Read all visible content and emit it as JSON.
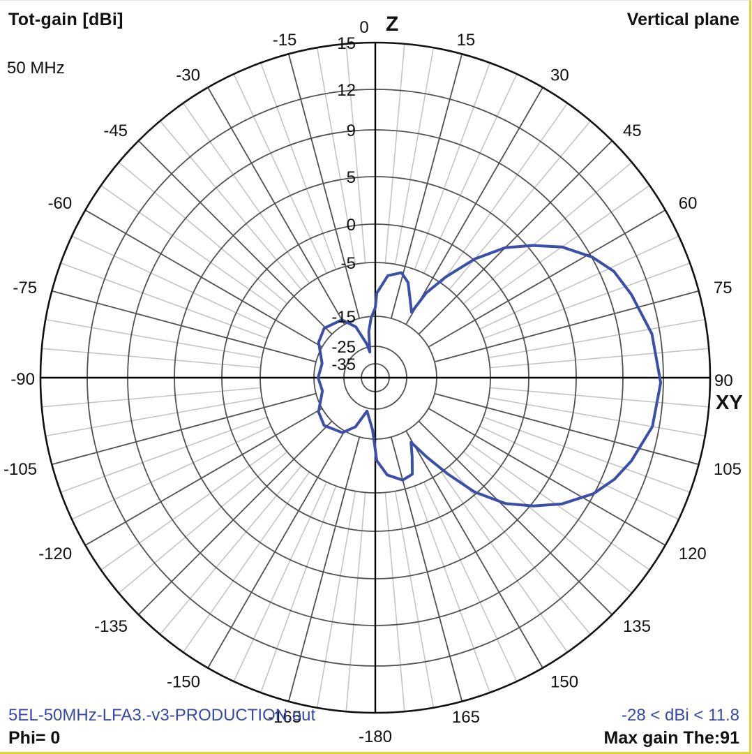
{
  "header": {
    "quantity": "Tot-gain [dBi]",
    "plane": "Vertical plane",
    "frequency": "50 MHz"
  },
  "footer": {
    "filename": "5EL-50MHz-LFA3.-v3-PRODUCTION.out",
    "range": "-28 < dBi < 11.8",
    "phi": "Phi= 0",
    "max_gain": "Max gain The:91"
  },
  "axes": {
    "top_axis_label": "Z",
    "right_axis_label": "XY"
  },
  "colors": {
    "trace": "#3a4fa8",
    "axis": "#000000",
    "major_grid": "#505050",
    "minor_grid": "#c4c4c4",
    "frame_accent": "#e4d232",
    "footer_text": "#3648a8"
  },
  "chart_data": {
    "type": "polar-line",
    "title": "Tot-gain [dBi] - Vertical plane",
    "subtitle": "50 MHz",
    "angle_unit": "deg",
    "angle_zero": "top (Z)",
    "angle_direction": "clockwise",
    "angle_ticks": [
      0,
      15,
      30,
      45,
      60,
      75,
      90,
      105,
      120,
      135,
      150,
      165,
      -180,
      -165,
      -150,
      -135,
      -120,
      -105,
      -90,
      -75,
      -60,
      -45,
      -30,
      -15
    ],
    "radial_ticks_dbi": [
      -35,
      -25,
      -15,
      -5,
      0,
      5,
      9,
      12,
      15
    ],
    "radial_tick_radius_px": [
      20,
      45,
      88,
      165,
      220,
      288,
      355,
      413,
      480
    ],
    "radial_range_dbi": [
      -35,
      15
    ],
    "grid": true,
    "series": [
      {
        "name": "Tot-gain Phi=0",
        "points": [
          {
            "theta": 0,
            "gain": -13.4
          },
          {
            "theta": 1,
            "gain": -10.7
          },
          {
            "theta": 7,
            "gain": -7.3
          },
          {
            "theta": 14,
            "gain": -6.3
          },
          {
            "theta": 19,
            "gain": -7.7
          },
          {
            "theta": 24,
            "gain": -10.5
          },
          {
            "theta": 29,
            "gain": -12.5
          },
          {
            "theta": 31,
            "gain": -8.0
          },
          {
            "theta": 35,
            "gain": -4.0
          },
          {
            "theta": 40,
            "gain": 0.15
          },
          {
            "theta": 45,
            "gain": 3.2
          },
          {
            "theta": 50,
            "gain": 5.4
          },
          {
            "theta": 55,
            "gain": 7.3
          },
          {
            "theta": 61,
            "gain": 9.05
          },
          {
            "theta": 66,
            "gain": 10.0
          },
          {
            "theta": 72,
            "gain": 10.6
          },
          {
            "theta": 81,
            "gain": 11.4
          },
          {
            "theta": 91,
            "gain": 11.8
          },
          {
            "theta": 100,
            "gain": 11.5
          },
          {
            "theta": 108,
            "gain": 10.6
          },
          {
            "theta": 113,
            "gain": 9.9
          },
          {
            "theta": 118,
            "gain": 8.94
          },
          {
            "theta": 124,
            "gain": 7.1
          },
          {
            "theta": 129,
            "gain": 5.24
          },
          {
            "theta": 134,
            "gain": 2.9
          },
          {
            "theta": 139,
            "gain": -0.27
          },
          {
            "theta": 143,
            "gain": -4.3
          },
          {
            "theta": 147,
            "gain": -8.8
          },
          {
            "theta": 151,
            "gain": -12.7
          },
          {
            "theta": 155,
            "gain": -10.2
          },
          {
            "theta": 159,
            "gain": -7.2
          },
          {
            "theta": 165,
            "gain": -6.7
          },
          {
            "theta": 173,
            "gain": -8.2
          },
          {
            "theta": 179,
            "gain": -11.0
          },
          {
            "theta": 183,
            "gain": -18.0
          },
          {
            "theta": 188,
            "gain": -21.5
          },
          {
            "theta": 194,
            "gain": -24.0
          },
          {
            "theta": 202,
            "gain": -17.8
          },
          {
            "theta": 211,
            "gain": -14.5
          },
          {
            "theta": 227,
            "gain": -13.4
          },
          {
            "theta": 239,
            "gain": -14.1
          },
          {
            "theta": 256,
            "gain": -17.3
          },
          {
            "theta": 270,
            "gain": -16.4
          },
          {
            "theta": 285,
            "gain": -17.1
          },
          {
            "theta": 302,
            "gain": -14.0
          },
          {
            "theta": 314,
            "gain": -13.2
          },
          {
            "theta": 330,
            "gain": -14.0
          },
          {
            "theta": 339,
            "gain": -17.3
          },
          {
            "theta": 346,
            "gain": -24.0
          },
          {
            "theta": 348,
            "gain": -28.0
          },
          {
            "theta": 352,
            "gain": -20.0
          },
          {
            "theta": 356,
            "gain": -15.5
          },
          {
            "theta": 360,
            "gain": -13.4
          }
        ]
      }
    ],
    "max_gain_dbi": 11.8,
    "min_gain_dbi": -28,
    "max_gain_theta": 91,
    "phi": 0
  }
}
